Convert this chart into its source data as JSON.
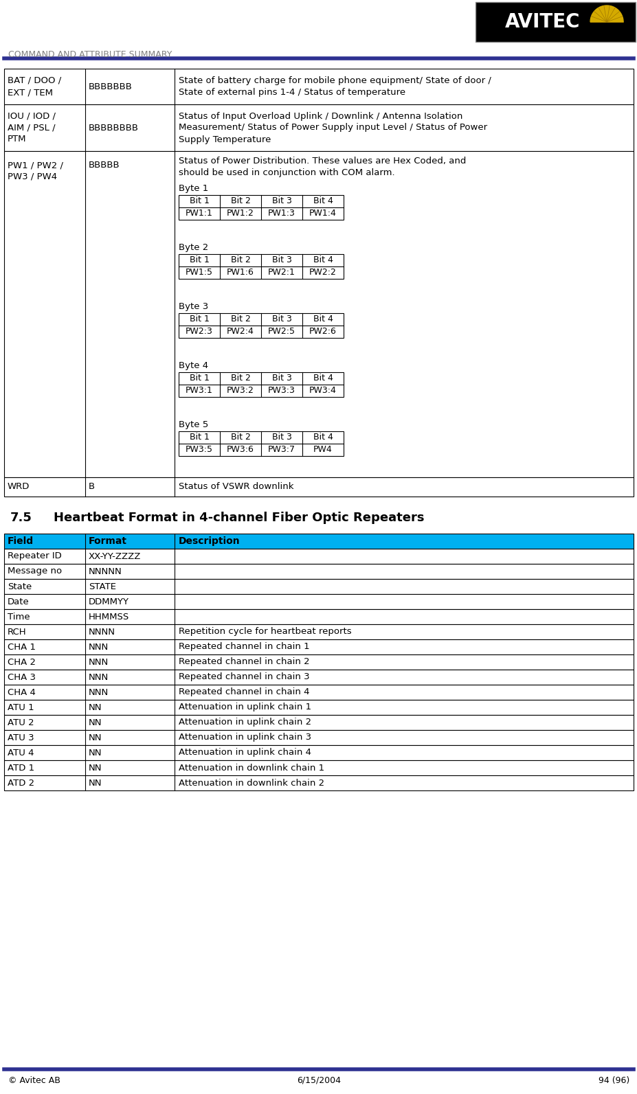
{
  "page_title": "COMMAND AND ATTRIBUTE SUMMARY",
  "footer_left": "© Avitec AB",
  "footer_center": "6/15/2004",
  "footer_right": "94 (96)",
  "header_line_color": "#2e3191",
  "footer_line_color": "#2e3191",
  "title_color": "#808080",
  "top_table": {
    "rows": [
      {
        "col0": "BAT / DOO /\nEXT / TEM",
        "col1": "BBBBBBB",
        "col2": "State of battery charge for mobile phone equipment/ State of door /\nState of external pins 1-4 / Status of temperature"
      },
      {
        "col0": "IOU / IOD /\nAIM / PSL /\nPTM",
        "col1": "BBBBBBBB",
        "col2": "Status of Input Overload Uplink / Downlink / Antenna Isolation\nMeasurement/ Status of Power Supply input Level / Status of Power\nSupply Temperature"
      },
      {
        "col0": "PW1 / PW2 /\nPW3 / PW4",
        "col1": "BBBBB",
        "col2_special": true
      },
      {
        "col0": "WRD",
        "col1": "B",
        "col2": "Status of VSWR downlink"
      }
    ],
    "pw_description": "Status of Power Distribution. These values are Hex Coded, and\nshould be used in conjunction with COM alarm.",
    "bytes": [
      {
        "label": "Byte 1",
        "header": [
          "Bit 1",
          "Bit 2",
          "Bit 3",
          "Bit 4"
        ],
        "values": [
          "PW1:1",
          "PW1:2",
          "PW1:3",
          "PW1:4"
        ]
      },
      {
        "label": "Byte 2",
        "header": [
          "Bit 1",
          "Bit 2",
          "Bit 3",
          "Bit 4"
        ],
        "values": [
          "PW1:5",
          "PW1:6",
          "PW2:1",
          "PW2:2"
        ]
      },
      {
        "label": "Byte 3",
        "header": [
          "Bit 1",
          "Bit 2",
          "Bit 3",
          "Bit 4"
        ],
        "values": [
          "PW2:3",
          "PW2:4",
          "PW2:5",
          "PW2:6"
        ]
      },
      {
        "label": "Byte 4",
        "header": [
          "Bit 1",
          "Bit 2",
          "Bit 3",
          "Bit 4"
        ],
        "values": [
          "PW3:1",
          "PW3:2",
          "PW3:3",
          "PW3:4"
        ]
      },
      {
        "label": "Byte 5",
        "header": [
          "Bit 1",
          "Bit 2",
          "Bit 3",
          "Bit 4"
        ],
        "values": [
          "PW3:5",
          "PW3:6",
          "PW3:7",
          "PW4"
        ]
      }
    ]
  },
  "section_title_number": "7.5",
  "section_title_text": "Heartbeat Format in 4-channel Fiber Optic Repeaters",
  "bottom_table": {
    "header_bg": "#00b0f0",
    "headers": [
      "Field",
      "Format",
      "Description"
    ],
    "rows": [
      [
        "Repeater ID",
        "XX-YY-ZZZZ",
        ""
      ],
      [
        "Message no",
        "NNNNN",
        ""
      ],
      [
        "State",
        "STATE",
        ""
      ],
      [
        "Date",
        "DDMMYY",
        ""
      ],
      [
        "Time",
        "HHMMSS",
        ""
      ],
      [
        "RCH",
        "NNNN",
        "Repetition cycle for heartbeat reports"
      ],
      [
        "CHA 1",
        "NNN",
        "Repeated channel in chain 1"
      ],
      [
        "CHA 2",
        "NNN",
        "Repeated channel in chain 2"
      ],
      [
        "CHA 3",
        "NNN",
        "Repeated channel in chain 3"
      ],
      [
        "CHA 4",
        "NNN",
        "Repeated channel in chain 4"
      ],
      [
        "ATU 1",
        "NN",
        "Attenuation in uplink chain 1"
      ],
      [
        "ATU 2",
        "NN",
        "Attenuation in uplink chain 2"
      ],
      [
        "ATU 3",
        "NN",
        "Attenuation in uplink chain 3"
      ],
      [
        "ATU 4",
        "NN",
        "Attenuation in uplink chain 4"
      ],
      [
        "ATD 1",
        "NN",
        "Attenuation in downlink chain 1"
      ],
      [
        "ATD 2",
        "NN",
        "Attenuation in downlink chain 2"
      ]
    ]
  }
}
